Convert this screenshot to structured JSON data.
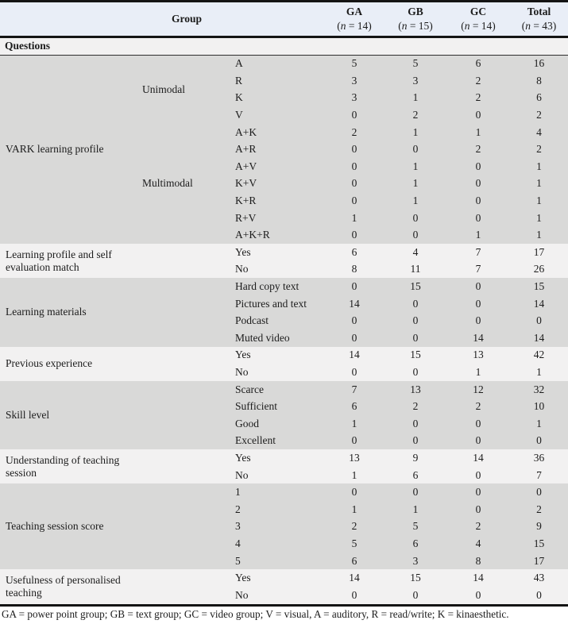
{
  "header": {
    "group_label": "Group",
    "columns": [
      {
        "name": "GA",
        "n": "(n = 14)"
      },
      {
        "name": "GB",
        "n": "(n = 15)"
      },
      {
        "name": "GC",
        "n": "(n = 14)"
      },
      {
        "name": "Total",
        "n": "(n = 43)"
      }
    ]
  },
  "questions_label": "Questions",
  "column_keys": [
    "ga",
    "gb",
    "gc",
    "total"
  ],
  "sections": [
    {
      "label": "VARK learning profile",
      "shade": "gray",
      "modal_groups": [
        {
          "label": "Unimodal",
          "row_count": 4
        },
        {
          "label": "Multimodal",
          "row_count": 7
        }
      ],
      "rows": [
        {
          "item": "A",
          "values": [
            5,
            5,
            6,
            16
          ]
        },
        {
          "item": "R",
          "values": [
            3,
            3,
            2,
            8
          ]
        },
        {
          "item": "K",
          "values": [
            3,
            1,
            2,
            6
          ]
        },
        {
          "item": "V",
          "values": [
            0,
            2,
            0,
            2
          ]
        },
        {
          "item": "A+K",
          "values": [
            2,
            1,
            1,
            4
          ]
        },
        {
          "item": "A+R",
          "values": [
            0,
            0,
            2,
            2
          ]
        },
        {
          "item": "A+V",
          "values": [
            0,
            1,
            0,
            1
          ]
        },
        {
          "item": "K+V",
          "values": [
            0,
            1,
            0,
            1
          ]
        },
        {
          "item": "K+R",
          "values": [
            0,
            1,
            0,
            1
          ]
        },
        {
          "item": "R+V",
          "values": [
            1,
            0,
            0,
            1
          ]
        },
        {
          "item": "A+K+R",
          "values": [
            0,
            0,
            1,
            1
          ]
        }
      ]
    },
    {
      "label": "Learning profile and self evaluation match",
      "shade": "light",
      "rows": [
        {
          "item": "Yes",
          "values": [
            6,
            4,
            7,
            17
          ]
        },
        {
          "item": "No",
          "values": [
            8,
            11,
            7,
            26
          ]
        }
      ]
    },
    {
      "label": "Learning materials",
      "shade": "gray",
      "rows": [
        {
          "item": "Hard copy text",
          "values": [
            0,
            15,
            0,
            15
          ]
        },
        {
          "item": "Pictures and text",
          "values": [
            14,
            0,
            0,
            14
          ]
        },
        {
          "item": "Podcast",
          "values": [
            0,
            0,
            0,
            0
          ]
        },
        {
          "item": "Muted video",
          "values": [
            0,
            0,
            14,
            14
          ]
        }
      ]
    },
    {
      "label": "Previous experience",
      "shade": "light",
      "rows": [
        {
          "item": "Yes",
          "values": [
            14,
            15,
            13,
            42
          ]
        },
        {
          "item": "No",
          "values": [
            0,
            0,
            1,
            1
          ]
        }
      ]
    },
    {
      "label": "Skill level",
      "shade": "gray",
      "rows": [
        {
          "item": "Scarce",
          "values": [
            7,
            13,
            12,
            32
          ]
        },
        {
          "item": "Sufficient",
          "values": [
            6,
            2,
            2,
            10
          ]
        },
        {
          "item": "Good",
          "values": [
            1,
            0,
            0,
            1
          ]
        },
        {
          "item": "Excellent",
          "values": [
            0,
            0,
            0,
            0
          ]
        }
      ]
    },
    {
      "label": "Understanding of teaching session",
      "shade": "light",
      "rows": [
        {
          "item": "Yes",
          "values": [
            13,
            9,
            14,
            36
          ]
        },
        {
          "item": "No",
          "values": [
            1,
            6,
            0,
            7
          ]
        }
      ]
    },
    {
      "label": "Teaching session score",
      "shade": "gray",
      "rows": [
        {
          "item": "1",
          "values": [
            0,
            0,
            0,
            0
          ]
        },
        {
          "item": "2",
          "values": [
            1,
            1,
            0,
            2
          ]
        },
        {
          "item": "3",
          "values": [
            2,
            5,
            2,
            9
          ]
        },
        {
          "item": "4",
          "values": [
            5,
            6,
            4,
            15
          ]
        },
        {
          "item": "5",
          "values": [
            6,
            3,
            8,
            17
          ]
        }
      ]
    },
    {
      "label": "Usefulness of personalised teaching",
      "shade": "light",
      "rows": [
        {
          "item": "Yes",
          "values": [
            14,
            15,
            14,
            43
          ]
        },
        {
          "item": "No",
          "values": [
            0,
            0,
            0,
            0
          ]
        }
      ]
    }
  ],
  "footnote": "GA = power point group; GB = text group; GC = video group; V = visual, A = auditory, R = read/write; K = kinaesthetic.",
  "colors": {
    "header_bg": "#e9eef7",
    "gray_band": "#d9d9d8",
    "light_band": "#f2f1f1",
    "rule": "#141414"
  }
}
